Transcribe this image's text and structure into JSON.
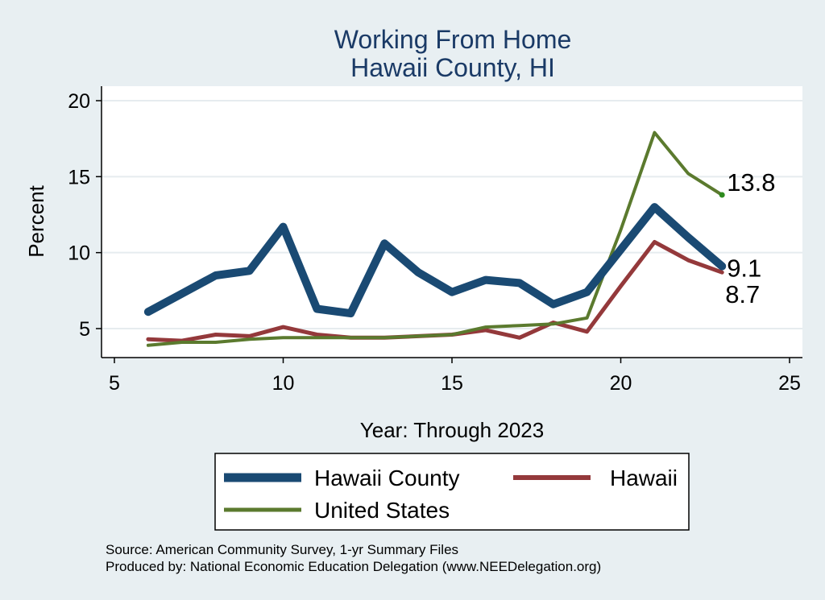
{
  "chart_data": {
    "type": "line",
    "title": "Working From Home",
    "subtitle": "Hawaii County, HI",
    "xlabel": "Year: Through 2023",
    "ylabel": "Percent",
    "xlim": [
      5,
      25
    ],
    "ylim": [
      3,
      21
    ],
    "x_ticks": [
      5,
      10,
      15,
      20,
      25
    ],
    "y_ticks": [
      5,
      10,
      15,
      20
    ],
    "grid": true,
    "legend_position": "bottom",
    "series": [
      {
        "name": "Hawaii County",
        "color": "#1a4a73",
        "x": [
          6,
          7,
          8,
          9,
          10,
          11,
          12,
          13,
          14,
          15,
          16,
          17,
          18,
          19,
          20,
          21,
          22,
          23
        ],
        "y": [
          6.1,
          7.3,
          8.5,
          8.8,
          11.7,
          6.3,
          6.0,
          10.6,
          8.7,
          7.4,
          8.2,
          8.0,
          6.6,
          7.4,
          10.2,
          13.0,
          11.0,
          9.1
        ]
      },
      {
        "name": "Hawaii",
        "color": "#94393b",
        "x": [
          6,
          7,
          8,
          9,
          10,
          11,
          12,
          13,
          14,
          15,
          16,
          17,
          18,
          19,
          20,
          21,
          22,
          23
        ],
        "y": [
          4.3,
          4.2,
          4.6,
          4.5,
          5.1,
          4.6,
          4.4,
          4.4,
          4.5,
          4.6,
          4.9,
          4.4,
          5.4,
          4.8,
          7.8,
          10.7,
          9.5,
          8.7
        ]
      },
      {
        "name": "United States",
        "color": "#5b7a2e",
        "x": [
          6,
          7,
          8,
          9,
          10,
          11,
          12,
          13,
          14,
          15,
          16,
          17,
          18,
          19,
          20,
          21,
          22,
          23
        ],
        "y": [
          3.9,
          4.1,
          4.1,
          4.3,
          4.4,
          4.4,
          4.4,
          4.4,
          4.5,
          4.6,
          5.1,
          5.2,
          5.3,
          5.7,
          11.5,
          17.9,
          15.2,
          13.8
        ]
      }
    ],
    "end_labels": [
      "9.1",
      "8.7",
      "13.8"
    ]
  },
  "notes": {
    "source": "Source: American Community Survey, 1-yr Summary Files",
    "produced_by": "Produced by: National Economic Education Delegation (www.NEEDelegation.org)"
  }
}
